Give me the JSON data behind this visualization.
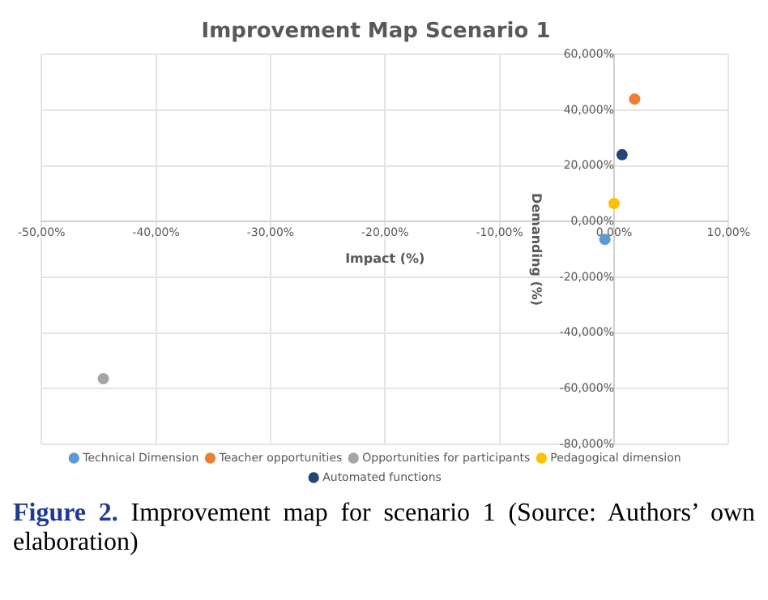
{
  "chart_data": {
    "type": "scatter",
    "title": "Improvement Map Scenario 1",
    "xlabel": "Impact (%)",
    "ylabel": "Demanding (%)",
    "series": [
      {
        "name": "Technical Dimension",
        "color": "#5b9bd5",
        "x": [
          -0.8
        ],
        "values": [
          -6.4
        ]
      },
      {
        "name": "Teacher opportunities",
        "color": "#ed7d31",
        "x": [
          1.8
        ],
        "values": [
          44
        ]
      },
      {
        "name": "Opportunities for participants",
        "color": "#a5a5a5",
        "x": [
          -44.6
        ],
        "values": [
          -56.4
        ]
      },
      {
        "name": "Pedagogical dimension",
        "color": "#ffc000",
        "x": [
          0
        ],
        "values": [
          6.5
        ]
      },
      {
        "name": "Automated functions",
        "color": "#264478",
        "x": [
          0.7
        ],
        "values": [
          24
        ]
      }
    ],
    "xlim": [
      -50,
      10
    ],
    "xticks": [
      {
        "value": -50,
        "label": "-50,00%"
      },
      {
        "value": -40,
        "label": "-40,00%"
      },
      {
        "value": -30,
        "label": "-30,00%"
      },
      {
        "value": -20,
        "label": "-20,00%"
      },
      {
        "value": -10,
        "label": "-10,00%"
      },
      {
        "value": 0,
        "label": "0,00%"
      },
      {
        "value": 10,
        "label": "10,00%"
      }
    ],
    "ylim": [
      -80,
      60
    ],
    "yticks": [
      {
        "value": -80,
        "label": "-80,000%"
      },
      {
        "value": -60,
        "label": "-60,000%"
      },
      {
        "value": -40,
        "label": "-40,000%"
      },
      {
        "value": -20,
        "label": "-20,000%"
      },
      {
        "value": 0,
        "label": "0,000%"
      },
      {
        "value": 20,
        "label": "20,000%"
      },
      {
        "value": 40,
        "label": "40,000%"
      },
      {
        "value": 60,
        "label": "60,000%"
      }
    ],
    "grid": true,
    "legend": "bottom",
    "marker": "circle",
    "annotations": [
      "Figure 2. Improvement map for scenario 1 (Source: Authors’ own elaboration)"
    ]
  }
}
